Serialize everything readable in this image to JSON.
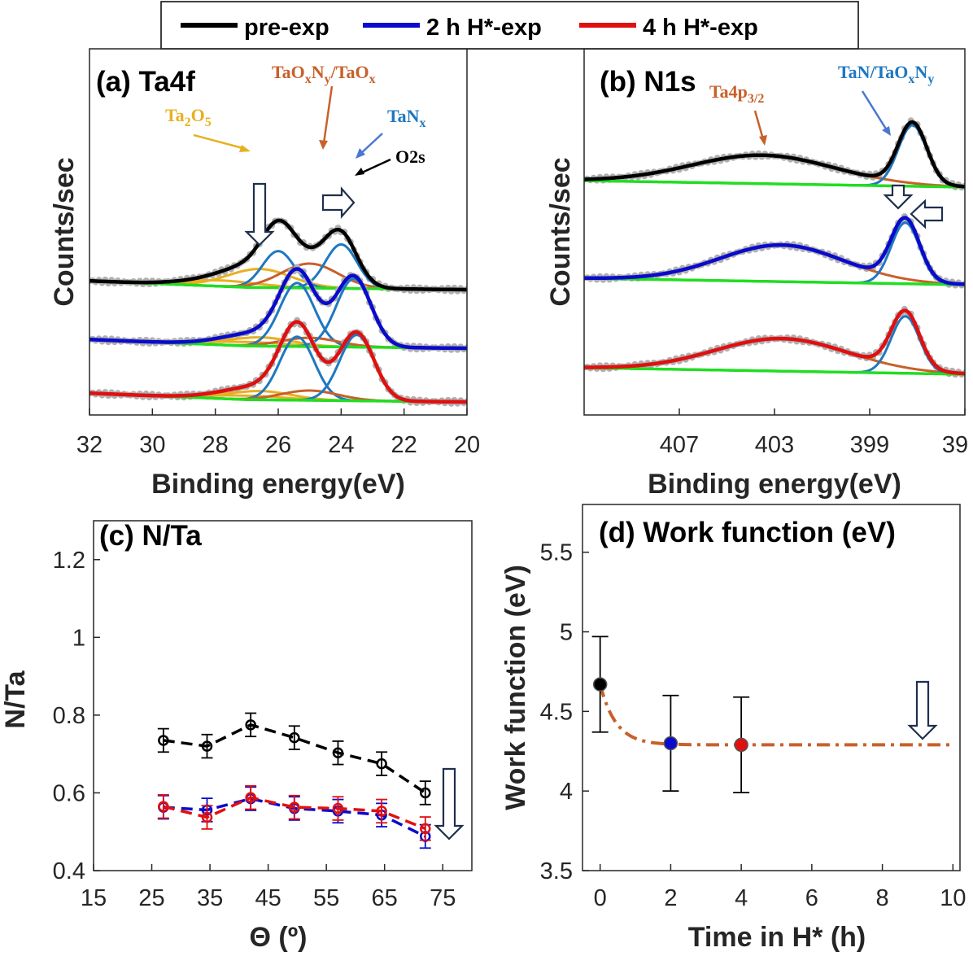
{
  "legend": {
    "items": [
      {
        "label": "pre-exp",
        "color": "#000000"
      },
      {
        "label": "2 h H*-exp",
        "color": "#0a0acc"
      },
      {
        "label": "4 h H*-exp",
        "color": "#e01010"
      }
    ]
  },
  "chart_data": [
    {
      "id": "a",
      "type": "line",
      "title": "(a) Ta4f",
      "xlabel": "Binding energy(eV)",
      "ylabel": "Counts/sec",
      "xlim": [
        32,
        20
      ],
      "reversed_x": true,
      "x_ticks": [
        "32",
        "30",
        "28",
        "26",
        "24",
        "22",
        "20"
      ],
      "series": [
        {
          "name": "pre-exp",
          "color": "#000000",
          "offset": 2.3,
          "peaks": [
            {
              "component": "Ta2O5",
              "center": 27.8,
              "amplitude": 0.12,
              "width": 1.2
            },
            {
              "component": "Ta2O5",
              "center": 26.6,
              "amplitude": 0.38,
              "width": 1.0
            },
            {
              "component": "TaNx",
              "center": 26.0,
              "amplitude": 0.75,
              "width": 0.5
            },
            {
              "component": "TaOxNy/TaOx",
              "center": 25.0,
              "amplitude": 0.5,
              "width": 0.9
            },
            {
              "component": "TaNx",
              "center": 24.0,
              "amplitude": 0.9,
              "width": 0.5
            }
          ]
        },
        {
          "name": "2 h H*-exp",
          "color": "#0a0acc",
          "offset": 1.1,
          "peaks": [
            {
              "component": "Ta2O5",
              "center": 27.0,
              "amplitude": 0.08,
              "width": 1.2
            },
            {
              "component": "Ta2O5",
              "center": 26.6,
              "amplitude": 0.18,
              "width": 1.0
            },
            {
              "component": "TaNx",
              "center": 25.4,
              "amplitude": 1.3,
              "width": 0.55
            },
            {
              "component": "TaOxNy/TaOx",
              "center": 25.0,
              "amplitude": 0.18,
              "width": 0.9
            },
            {
              "component": "TaNx",
              "center": 23.6,
              "amplitude": 1.4,
              "width": 0.55
            }
          ]
        },
        {
          "name": "4 h H*-exp",
          "color": "#e01010",
          "offset": 0,
          "peaks": [
            {
              "component": "Ta2O5",
              "center": 27.0,
              "amplitude": 0.08,
              "width": 1.2
            },
            {
              "component": "Ta2O5",
              "center": 26.6,
              "amplitude": 0.18,
              "width": 1.0
            },
            {
              "component": "TaNx",
              "center": 25.4,
              "amplitude": 1.3,
              "width": 0.55
            },
            {
              "component": "TaOxNy/TaOx",
              "center": 25.0,
              "amplitude": 0.2,
              "width": 0.9
            },
            {
              "component": "TaNx",
              "center": 23.5,
              "amplitude": 1.35,
              "width": 0.55
            }
          ]
        }
      ],
      "annotations": [
        {
          "text": "Ta2O5",
          "color": "#e8b020"
        },
        {
          "text": "TaOxNy/TaOx",
          "color": "#c8602a"
        },
        {
          "text": "TaNx",
          "color": "#1f78c0"
        },
        {
          "text": "O2s",
          "color": "#000000"
        }
      ]
    },
    {
      "id": "b",
      "type": "line",
      "title": "(b) N1s",
      "xlabel": "Binding energy(eV)",
      "ylabel": "Counts/sec",
      "xlim": [
        411,
        395
      ],
      "reversed_x": true,
      "x_ticks": [
        "407",
        "403",
        "399",
        "39"
      ],
      "series": [
        {
          "name": "pre-exp",
          "color": "#000000",
          "offset": 2.3,
          "peaks": [
            {
              "component": "Ta4p3/2",
              "center": 403.5,
              "amplitude": 0.35,
              "width": 3.0
            },
            {
              "component": "TaN/TaOxNy",
              "center": 397.2,
              "amplitude": 0.75,
              "width": 0.6
            }
          ]
        },
        {
          "name": "2 h H*-exp",
          "color": "#0a0acc",
          "offset": 1.1,
          "peaks": [
            {
              "component": "Ta4p3/2",
              "center": 402.7,
              "amplitude": 0.45,
              "width": 2.6
            },
            {
              "component": "TaN/TaOxNy",
              "center": 397.5,
              "amplitude": 0.75,
              "width": 0.6
            }
          ]
        },
        {
          "name": "4 h H*-exp",
          "color": "#e01010",
          "offset": 0,
          "peaks": [
            {
              "component": "Ta4p3/2",
              "center": 402.7,
              "amplitude": 0.4,
              "width": 2.8
            },
            {
              "component": "TaN/TaOxNy",
              "center": 397.5,
              "amplitude": 0.7,
              "width": 0.6
            }
          ]
        }
      ],
      "annotations": [
        {
          "text": "Ta4p3/2",
          "color": "#c8602a"
        },
        {
          "text": "TaN/TaOxNy",
          "color": "#1f78c0"
        }
      ]
    },
    {
      "id": "c",
      "type": "scatter",
      "title": "(c) N/Ta",
      "xlabel": "Θ (º)",
      "ylabel": "N/Ta",
      "xlim": [
        15,
        80
      ],
      "ylim": [
        0.4,
        1.3
      ],
      "x_ticks": [
        15,
        25,
        35,
        45,
        55,
        65,
        75
      ],
      "y_ticks": [
        0.4,
        0.6,
        0.8,
        1,
        1.2
      ],
      "x": [
        27,
        34.5,
        42,
        49.5,
        57,
        64.5,
        72
      ],
      "series": [
        {
          "name": "pre-exp",
          "color": "#000000",
          "filled": false,
          "values": [
            0.735,
            0.72,
            0.775,
            0.742,
            0.703,
            0.675,
            0.6
          ],
          "errors": [
            0.03,
            0.03,
            0.03,
            0.03,
            0.03,
            0.03,
            0.03
          ]
        },
        {
          "name": "2 h H*-exp",
          "color": "#0a0acc",
          "filled": false,
          "values": [
            0.563,
            0.556,
            0.585,
            0.56,
            0.553,
            0.543,
            0.488
          ],
          "errors": [
            0.03,
            0.03,
            0.03,
            0.03,
            0.03,
            0.03,
            0.03
          ]
        },
        {
          "name": "4 h H*-exp",
          "color": "#e01010",
          "filled": false,
          "values": [
            0.565,
            0.537,
            0.588,
            0.563,
            0.56,
            0.553,
            0.508
          ],
          "errors": [
            0.03,
            0.03,
            0.03,
            0.03,
            0.03,
            0.03,
            0.03
          ]
        }
      ]
    },
    {
      "id": "d",
      "type": "scatter",
      "title": "(d) Work function (eV)",
      "xlabel": "Time in H* (h)",
      "ylabel": "Work function (eV)",
      "xlim": [
        -0.5,
        10.2
      ],
      "ylim": [
        3.5,
        5.8
      ],
      "x_ticks": [
        0,
        2,
        4,
        6,
        8,
        10
      ],
      "y_ticks": [
        3.5,
        4,
        4.5,
        5,
        5.5
      ],
      "points": [
        {
          "name": "pre-exp",
          "x": 0,
          "y": 4.67,
          "error": 0.3,
          "color": "#000000"
        },
        {
          "name": "2 h H*-exp",
          "x": 2,
          "y": 4.3,
          "error": 0.3,
          "color": "#0a0acc"
        },
        {
          "name": "4 h H*-exp",
          "x": 4,
          "y": 4.29,
          "error": 0.3,
          "color": "#e01010"
        }
      ],
      "fit": {
        "type": "exponential",
        "start": 4.67,
        "plateau": 4.29,
        "tau": 0.45,
        "color": "#c8602a"
      }
    }
  ]
}
